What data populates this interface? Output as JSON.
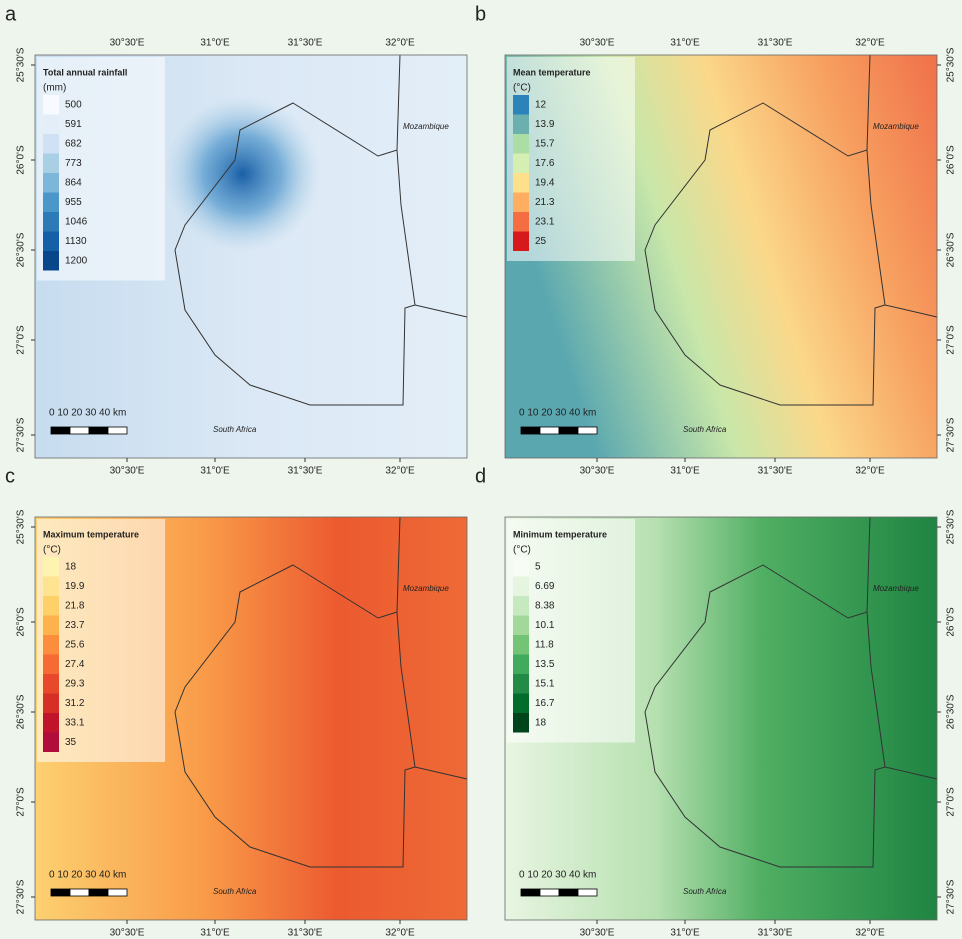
{
  "lon_labels": [
    "30°30'E",
    "31°0'E",
    "31°30'E",
    "32°0'E"
  ],
  "lat_labels": [
    "25°30'S",
    "26°0'S",
    "26°30'S",
    "27°0'S",
    "27°30'S"
  ],
  "scale_label": "0  10 20 30 40 km",
  "countries": {
    "north": "Mozambique",
    "south": "South Africa"
  },
  "panels": [
    {
      "letter": "a",
      "legend_title": "Total annual rainfall",
      "legend_unit": "(mm)",
      "legend": [
        {
          "label": "500",
          "color": "#f7fbff"
        },
        {
          "label": "591",
          "color": "#e3eef9"
        },
        {
          "label": "682",
          "color": "#cfe1f2"
        },
        {
          "label": "773",
          "color": "#a9cfe5"
        },
        {
          "label": "864",
          "color": "#7cb7da"
        },
        {
          "label": "955",
          "color": "#4b97c9"
        },
        {
          "label": "1046",
          "color": "#2c7bb6"
        },
        {
          "label": "1130",
          "color": "#1460a8"
        },
        {
          "label": "1200",
          "color": "#08468b"
        }
      ]
    },
    {
      "letter": "b",
      "legend_title": "Mean temperature",
      "legend_unit": "(°C)",
      "legend": [
        {
          "label": "12",
          "color": "#2b83ba"
        },
        {
          "label": "13.9",
          "color": "#6bb0af"
        },
        {
          "label": "15.7",
          "color": "#abdda4"
        },
        {
          "label": "17.6",
          "color": "#d5eeb1"
        },
        {
          "label": "19.4",
          "color": "#fee08b"
        },
        {
          "label": "21.3",
          "color": "#fdae61"
        },
        {
          "label": "23.1",
          "color": "#f46d43"
        },
        {
          "label": "25",
          "color": "#d7191c"
        }
      ]
    },
    {
      "letter": "c",
      "legend_title": "Maximum temperature",
      "legend_unit": "(°C)",
      "legend": [
        {
          "label": "18",
          "color": "#fff3b0"
        },
        {
          "label": "19.9",
          "color": "#fee391"
        },
        {
          "label": "21.8",
          "color": "#fdd06a"
        },
        {
          "label": "23.7",
          "color": "#fdb24c"
        },
        {
          "label": "25.6",
          "color": "#fc8d3c"
        },
        {
          "label": "27.4",
          "color": "#f56b33"
        },
        {
          "label": "29.3",
          "color": "#e8492a"
        },
        {
          "label": "31.2",
          "color": "#d62f26"
        },
        {
          "label": "33.1",
          "color": "#c0142a"
        },
        {
          "label": "35",
          "color": "#b10d3a"
        }
      ]
    },
    {
      "letter": "d",
      "legend_title": "Minimum temperature",
      "legend_unit": "(°C)",
      "legend": [
        {
          "label": "5",
          "color": "#f7fcf5"
        },
        {
          "label": "6.69",
          "color": "#e5f5e0"
        },
        {
          "label": "8.38",
          "color": "#c7e9c0"
        },
        {
          "label": "10.1",
          "color": "#a1d99b"
        },
        {
          "label": "11.8",
          "color": "#74c476"
        },
        {
          "label": "13.5",
          "color": "#41ab5d"
        },
        {
          "label": "15.1",
          "color": "#238b45"
        },
        {
          "label": "16.7",
          "color": "#006d2c"
        },
        {
          "label": "18",
          "color": "#00441b"
        }
      ]
    }
  ]
}
